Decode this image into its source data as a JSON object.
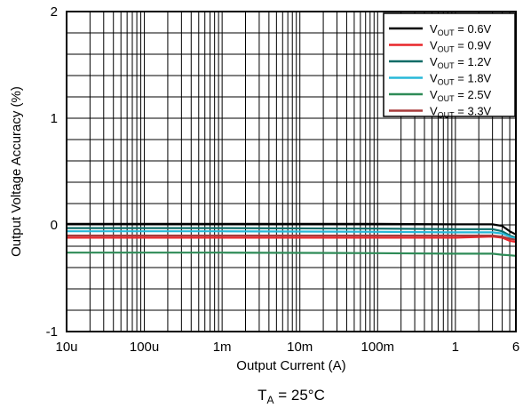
{
  "chart_data": {
    "type": "line",
    "x_scale": "log",
    "xlabel": "Output Current (A)",
    "ylabel": "Output Voltage Accuracy (%)",
    "xlim": [
      1e-05,
      6
    ],
    "ylim": [
      -1,
      2
    ],
    "x_ticks": [
      {
        "value": 1e-05,
        "label": "10u"
      },
      {
        "value": 0.0001,
        "label": "100u"
      },
      {
        "value": 0.001,
        "label": "1m"
      },
      {
        "value": 0.01,
        "label": "10m"
      },
      {
        "value": 0.1,
        "label": "100m"
      },
      {
        "value": 1,
        "label": "1"
      },
      {
        "value": 6,
        "label": "6"
      }
    ],
    "y_ticks": [
      {
        "value": 2,
        "label": "2"
      },
      {
        "value": 1,
        "label": "1"
      },
      {
        "value": 0,
        "label": "0"
      },
      {
        "value": -1,
        "label": "-1"
      }
    ],
    "grid": true,
    "legend_position": "top-right",
    "caption": {
      "main": "T",
      "sub": "A",
      "rest": " = 25°C"
    },
    "series": [
      {
        "name": "V_OUT = 0.6V",
        "label_main": "V",
        "label_sub": "OUT",
        "label_rest": " = 0.6V",
        "color": "#000000",
        "points": [
          [
            1e-05,
            0.01
          ],
          [
            0.001,
            0.01
          ],
          [
            0.1,
            0.01
          ],
          [
            1,
            0.005
          ],
          [
            3,
            0.005
          ],
          [
            4,
            -0.01
          ],
          [
            5,
            -0.06
          ],
          [
            6,
            -0.09
          ]
        ]
      },
      {
        "name": "V_OUT = 0.9V",
        "label_main": "V",
        "label_sub": "OUT",
        "label_rest": " = 0.9V",
        "color": "#e8262a",
        "points": [
          [
            1e-05,
            -0.12
          ],
          [
            0.001,
            -0.12
          ],
          [
            0.1,
            -0.12
          ],
          [
            1,
            -0.12
          ],
          [
            3,
            -0.11
          ],
          [
            4,
            -0.12
          ],
          [
            5,
            -0.15
          ],
          [
            6,
            -0.16
          ]
        ]
      },
      {
        "name": "V_OUT = 1.2V",
        "label_main": "V",
        "label_sub": "OUT",
        "label_rest": " = 1.2V",
        "color": "#0d6b66",
        "points": [
          [
            1e-05,
            -0.03
          ],
          [
            0.001,
            -0.03
          ],
          [
            0.1,
            -0.035
          ],
          [
            1,
            -0.04
          ],
          [
            3,
            -0.04
          ],
          [
            4,
            -0.06
          ],
          [
            5,
            -0.1
          ],
          [
            6,
            -0.12
          ]
        ]
      },
      {
        "name": "V_OUT = 1.8V",
        "label_main": "V",
        "label_sub": "OUT",
        "label_rest": " = 1.8V",
        "color": "#28b8d8",
        "points": [
          [
            1e-05,
            -0.06
          ],
          [
            0.001,
            -0.06
          ],
          [
            0.1,
            -0.065
          ],
          [
            1,
            -0.07
          ],
          [
            3,
            -0.07
          ],
          [
            4,
            -0.08
          ],
          [
            5,
            -0.11
          ],
          [
            6,
            -0.13
          ]
        ]
      },
      {
        "name": "V_OUT = 2.5V",
        "label_main": "V",
        "label_sub": "OUT",
        "label_rest": " = 2.5V",
        "color": "#2e8b57",
        "points": [
          [
            1e-05,
            -0.26
          ],
          [
            0.001,
            -0.26
          ],
          [
            0.1,
            -0.265
          ],
          [
            1,
            -0.27
          ],
          [
            3,
            -0.27
          ],
          [
            4,
            -0.28
          ],
          [
            5,
            -0.285
          ],
          [
            6,
            -0.29
          ]
        ]
      },
      {
        "name": "V_OUT = 3.3V",
        "label_main": "V",
        "label_sub": "OUT",
        "label_rest": " = 3.3V",
        "color": "#a83a3a",
        "points": [
          [
            1e-05,
            -0.1
          ],
          [
            0.001,
            -0.1
          ],
          [
            0.1,
            -0.1
          ],
          [
            1,
            -0.1
          ],
          [
            3,
            -0.1
          ],
          [
            4,
            -0.11
          ],
          [
            5,
            -0.13
          ],
          [
            6,
            -0.14
          ]
        ]
      }
    ]
  }
}
